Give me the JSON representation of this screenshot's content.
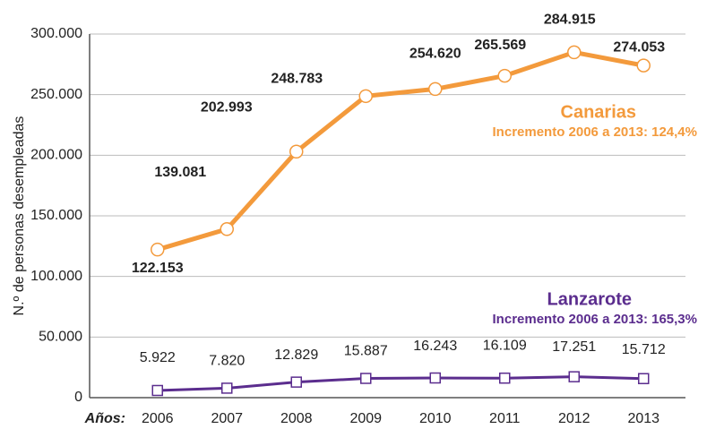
{
  "chart_data": {
    "type": "line",
    "y_label": "N.º de personas desempleadas",
    "x_label": "Años:",
    "categories": [
      "2006",
      "2007",
      "2008",
      "2009",
      "2010",
      "2011",
      "2012",
      "2013"
    ],
    "series": [
      {
        "name": "Canarias",
        "color": "#f39a3c",
        "marker": "circle",
        "values": [
          122153,
          139081,
          202993,
          248783,
          254620,
          265569,
          284915,
          274053
        ],
        "value_labels": [
          "122.153",
          "139.081",
          "202.993",
          "248.783",
          "254.620",
          "265.569",
          "284.915",
          "274.053"
        ]
      },
      {
        "name": "Lanzarote",
        "color": "#5b2d8e",
        "marker": "square",
        "values": [
          5922,
          7820,
          12829,
          15887,
          16243,
          16109,
          17251,
          15712
        ],
        "value_labels": [
          "5.922",
          "7.820",
          "12.829",
          "15.887",
          "16.243",
          "16.109",
          "17.251",
          "15.712"
        ]
      }
    ],
    "annotations": [
      "Incremento 2006 a 2013: 124,4%",
      "Incremento 2006 a 2013: 165,3%"
    ],
    "ylim": [
      0,
      300000
    ],
    "yticks": [
      {
        "value": 0,
        "label": "0"
      },
      {
        "value": 50000,
        "label": "50.000"
      },
      {
        "value": 100000,
        "label": "100.000"
      },
      {
        "value": 150000,
        "label": "150.000"
      },
      {
        "value": 200000,
        "label": "200.000"
      },
      {
        "value": 250000,
        "label": "250.000"
      },
      {
        "value": 300000,
        "label": "300.000"
      }
    ],
    "grid": true
  }
}
